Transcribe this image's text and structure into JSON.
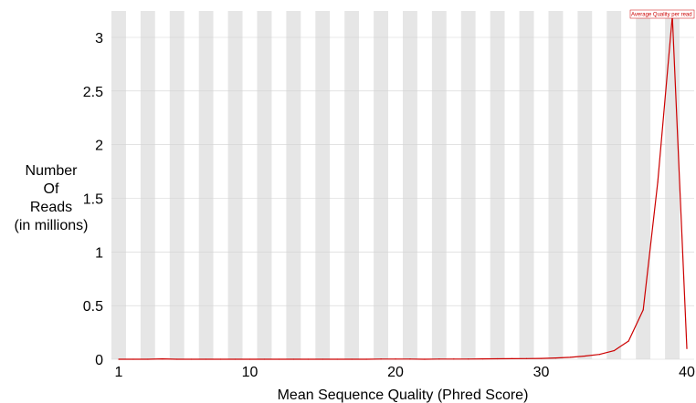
{
  "chart_data": {
    "type": "line",
    "title": "",
    "xlabel": "Mean Sequence Quality (Phred Score)",
    "ylabel_lines": [
      "Number",
      "Of",
      "Reads",
      "(in millions)"
    ],
    "xlim": [
      1,
      40
    ],
    "ylim": [
      0,
      3.2
    ],
    "x_ticks": [
      1,
      10,
      20,
      30,
      40
    ],
    "y_ticks": [
      {
        "value": 0,
        "label": "0"
      },
      {
        "value": 0.5,
        "label": "0.5"
      },
      {
        "value": 1,
        "label": "1"
      },
      {
        "value": 1.5,
        "label": "1.5"
      },
      {
        "value": 2,
        "label": "2"
      },
      {
        "value": 2.5,
        "label": "2.5"
      },
      {
        "value": 3,
        "label": "3"
      }
    ],
    "background_bands": "alternating grey/white per integer quality score",
    "grid": true,
    "legend": "top-right",
    "series": [
      {
        "name": "Average Quality per read",
        "color": "#cc0000",
        "points": [
          [
            1,
            0.0
          ],
          [
            2,
            0.0
          ],
          [
            3,
            0.0
          ],
          [
            4,
            0.003
          ],
          [
            5,
            0.0
          ],
          [
            6,
            0.0
          ],
          [
            7,
            0.0
          ],
          [
            8,
            0.0
          ],
          [
            9,
            0.0
          ],
          [
            10,
            0.0
          ],
          [
            11,
            0.0
          ],
          [
            12,
            0.0
          ],
          [
            13,
            0.0
          ],
          [
            14,
            0.0
          ],
          [
            15,
            0.0
          ],
          [
            16,
            0.0
          ],
          [
            17,
            0.0
          ],
          [
            18,
            0.0
          ],
          [
            19,
            0.002
          ],
          [
            20,
            0.002
          ],
          [
            21,
            0.002
          ],
          [
            22,
            0.0
          ],
          [
            23,
            0.002
          ],
          [
            24,
            0.002
          ],
          [
            25,
            0.002
          ],
          [
            26,
            0.003
          ],
          [
            27,
            0.004
          ],
          [
            28,
            0.005
          ],
          [
            29,
            0.006
          ],
          [
            30,
            0.008
          ],
          [
            31,
            0.012
          ],
          [
            32,
            0.018
          ],
          [
            33,
            0.03
          ],
          [
            34,
            0.045
          ],
          [
            35,
            0.08
          ],
          [
            36,
            0.17
          ],
          [
            37,
            0.46
          ],
          [
            38,
            1.65
          ],
          [
            39,
            3.2
          ],
          [
            40,
            0.1
          ]
        ]
      }
    ]
  }
}
